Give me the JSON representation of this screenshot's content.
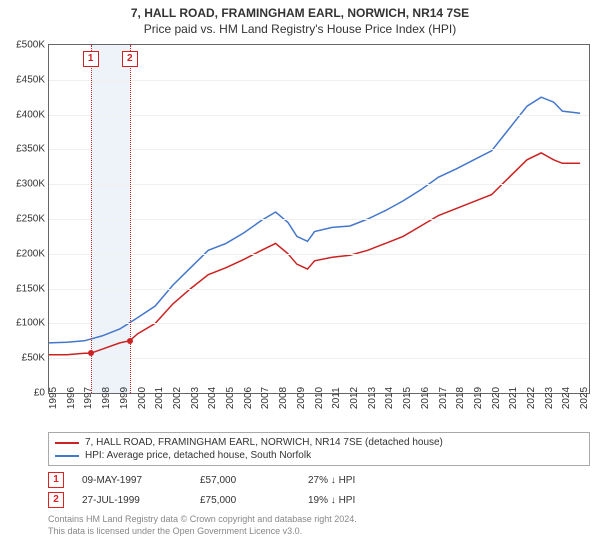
{
  "title": "7, HALL ROAD, FRAMINGHAM EARL, NORWICH, NR14 7SE",
  "subtitle": "Price paid vs. HM Land Registry's House Price Index (HPI)",
  "chart": {
    "type": "line",
    "x_min": 1995.0,
    "x_max": 2025.5,
    "y_min": 0,
    "y_max": 500000,
    "y_tick_step": 50000,
    "y_tick_prefix": "£",
    "y_tick_suffix": "K",
    "x_ticks": [
      1995,
      1996,
      1997,
      1998,
      1999,
      2000,
      2001,
      2002,
      2003,
      2004,
      2005,
      2006,
      2007,
      2008,
      2009,
      2010,
      2011,
      2012,
      2013,
      2014,
      2015,
      2016,
      2017,
      2018,
      2019,
      2020,
      2021,
      2022,
      2023,
      2024,
      2025
    ],
    "background_color": "#ffffff",
    "grid_color": "#f0f0f0",
    "axis_color": "#666666",
    "label_fontsize": 10,
    "band": {
      "x_start": 1997.35,
      "x_end": 1999.56,
      "color": "#eef3fa"
    },
    "series": [
      {
        "name": "7, HALL ROAD, FRAMINGHAM EARL, NORWICH, NR14 7SE (detached house)",
        "color": "#cc2222",
        "line_width": 1.5,
        "points": [
          [
            1995.0,
            55000
          ],
          [
            1996.0,
            55000
          ],
          [
            1997.0,
            57000
          ],
          [
            1997.35,
            57000
          ],
          [
            1998.0,
            63000
          ],
          [
            1999.0,
            72000
          ],
          [
            1999.56,
            75000
          ],
          [
            2000.0,
            85000
          ],
          [
            2001.0,
            100000
          ],
          [
            2002.0,
            128000
          ],
          [
            2003.0,
            150000
          ],
          [
            2004.0,
            170000
          ],
          [
            2005.0,
            180000
          ],
          [
            2006.0,
            192000
          ],
          [
            2007.0,
            205000
          ],
          [
            2007.8,
            215000
          ],
          [
            2008.5,
            200000
          ],
          [
            2009.0,
            185000
          ],
          [
            2009.6,
            178000
          ],
          [
            2010.0,
            190000
          ],
          [
            2011.0,
            195000
          ],
          [
            2012.0,
            198000
          ],
          [
            2013.0,
            205000
          ],
          [
            2014.0,
            215000
          ],
          [
            2015.0,
            225000
          ],
          [
            2016.0,
            240000
          ],
          [
            2017.0,
            255000
          ],
          [
            2018.0,
            265000
          ],
          [
            2019.0,
            275000
          ],
          [
            2020.0,
            285000
          ],
          [
            2021.0,
            310000
          ],
          [
            2022.0,
            335000
          ],
          [
            2022.8,
            345000
          ],
          [
            2023.5,
            335000
          ],
          [
            2024.0,
            330000
          ],
          [
            2025.0,
            330000
          ]
        ]
      },
      {
        "name": "HPI: Average price, detached house, South Norfolk",
        "color": "#4477cc",
        "line_width": 1.5,
        "points": [
          [
            1995.0,
            72000
          ],
          [
            1996.0,
            73000
          ],
          [
            1997.0,
            75000
          ],
          [
            1998.0,
            82000
          ],
          [
            1999.0,
            92000
          ],
          [
            2000.0,
            108000
          ],
          [
            2001.0,
            125000
          ],
          [
            2002.0,
            155000
          ],
          [
            2003.0,
            180000
          ],
          [
            2004.0,
            205000
          ],
          [
            2005.0,
            215000
          ],
          [
            2006.0,
            230000
          ],
          [
            2007.0,
            248000
          ],
          [
            2007.8,
            260000
          ],
          [
            2008.5,
            245000
          ],
          [
            2009.0,
            225000
          ],
          [
            2009.6,
            218000
          ],
          [
            2010.0,
            232000
          ],
          [
            2011.0,
            238000
          ],
          [
            2012.0,
            240000
          ],
          [
            2013.0,
            250000
          ],
          [
            2014.0,
            262000
          ],
          [
            2015.0,
            276000
          ],
          [
            2016.0,
            292000
          ],
          [
            2017.0,
            310000
          ],
          [
            2018.0,
            322000
          ],
          [
            2019.0,
            335000
          ],
          [
            2020.0,
            348000
          ],
          [
            2021.0,
            380000
          ],
          [
            2022.0,
            412000
          ],
          [
            2022.8,
            425000
          ],
          [
            2023.5,
            418000
          ],
          [
            2024.0,
            405000
          ],
          [
            2025.0,
            402000
          ]
        ]
      }
    ],
    "event_lines": [
      {
        "n": "1",
        "x": 1997.35,
        "color": "#cc2222"
      },
      {
        "n": "2",
        "x": 1999.56,
        "color": "#cc2222"
      }
    ],
    "event_markers": [
      {
        "x": 1997.35,
        "y": 57000,
        "color": "#cc2222"
      },
      {
        "x": 1999.56,
        "y": 75000,
        "color": "#cc2222"
      }
    ]
  },
  "legend": {
    "items": [
      {
        "color": "#cc2222",
        "label": "7, HALL ROAD, FRAMINGHAM EARL, NORWICH, NR14 7SE (detached house)"
      },
      {
        "color": "#4477cc",
        "label": "HPI: Average price, detached house, South Norfolk"
      }
    ]
  },
  "events": [
    {
      "n": "1",
      "date": "09-MAY-1997",
      "price": "£57,000",
      "delta": "27% ↓ HPI"
    },
    {
      "n": "2",
      "date": "27-JUL-1999",
      "price": "£75,000",
      "delta": "19% ↓ HPI"
    }
  ],
  "attribution_line1": "Contains HM Land Registry data © Crown copyright and database right 2024.",
  "attribution_line2": "This data is licensed under the Open Government Licence v3.0."
}
